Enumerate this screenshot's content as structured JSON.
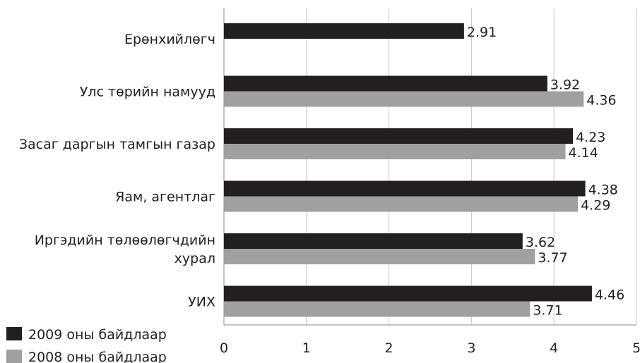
{
  "chart_data": {
    "type": "bar",
    "orientation": "horizontal",
    "title": "",
    "xlabel": "",
    "ylabel": "",
    "xlim": [
      0,
      5
    ],
    "ticks": [
      "0",
      "1",
      "2",
      "3",
      "4",
      "5"
    ],
    "grid": true,
    "legend_position": "bottom-left",
    "categories": [
      [
        "Ерөнхийлөгч"
      ],
      [
        "Улс төрийн намууд"
      ],
      [
        "Засаг даргын тамгын газар"
      ],
      [
        "Яам, агентлаг"
      ],
      [
        "Иргэдийн төлөөлөгчдийн",
        "хурал"
      ],
      [
        "УИХ"
      ]
    ],
    "series": [
      {
        "name": "2009 оны байдлаар",
        "color": "#231f20",
        "values": [
          2.91,
          3.92,
          4.23,
          4.38,
          3.62,
          4.46
        ],
        "labels": [
          "2.91",
          "3.92",
          "4.23",
          "4.38",
          "3.62",
          "4.46"
        ]
      },
      {
        "name": "2008 оны байдлаар",
        "color": "#a0a0a0",
        "values": [
          null,
          4.36,
          4.14,
          4.29,
          3.77,
          3.71
        ],
        "labels": [
          "",
          "4.36",
          "4.14",
          "4.29",
          "3.77",
          "3.71"
        ]
      }
    ]
  }
}
